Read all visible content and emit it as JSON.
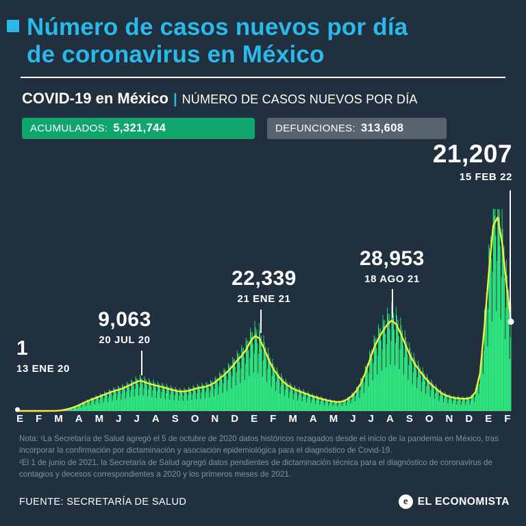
{
  "header": {
    "title_line1": "Número de casos nuevos por día",
    "title_line2": "de coronavirus en México",
    "subtitle_bold": "COVID-19 en México",
    "subtitle_separator": "|",
    "subtitle_rest": "NÚMERO DE CASOS NUEVOS POR DÍA"
  },
  "badges": {
    "accumulated_label": "ACUMULADOS:",
    "accumulated_value": "5,321,744",
    "deaths_label": "DEFUNCIONES:",
    "deaths_value": "313,608"
  },
  "colors": {
    "background": "#21303e",
    "accent_cyan": "#29b9ea",
    "chart_green": "#2ee27d",
    "line_yellow": "#f6ee3c",
    "badge_green": "#10a56c",
    "badge_gray": "#57636d",
    "note_gray": "#7e93a8"
  },
  "chart_data": {
    "type": "area",
    "title": "COVID-19 en México | Número de casos nuevos por día",
    "ylim": [
      0,
      48000
    ],
    "grid": false,
    "x_axis_months": [
      "E",
      "F",
      "M",
      "A",
      "M",
      "J",
      "J",
      "A",
      "S",
      "O",
      "N",
      "D",
      "E",
      "F",
      "M",
      "A",
      "M",
      "J",
      "J",
      "A",
      "S",
      "O",
      "N",
      "D",
      "E",
      "F"
    ],
    "weekly_avg": [
      0,
      0,
      1,
      2,
      3,
      4,
      6,
      9,
      15,
      40,
      120,
      300,
      550,
      900,
      1300,
      1800,
      2300,
      2700,
      3100,
      3500,
      3900,
      4300,
      4700,
      5000,
      5300,
      5800,
      6300,
      6800,
      7200,
      6900,
      6500,
      6200,
      5900,
      5700,
      5400,
      5100,
      4800,
      4600,
      4600,
      4800,
      5100,
      5400,
      5600,
      5800,
      6200,
      6800,
      7700,
      8500,
      9500,
      10700,
      12000,
      13100,
      14500,
      16500,
      17800,
      17300,
      15000,
      12500,
      10300,
      8700,
      7400,
      6400,
      5700,
      5100,
      4700,
      4300,
      3900,
      3500,
      3200,
      2900,
      2600,
      2400,
      2200,
      2100,
      2300,
      2800,
      3600,
      4800,
      6500,
      9000,
      12000,
      15000,
      17200,
      19000,
      20500,
      21500,
      20600,
      18500,
      16000,
      13600,
      11500,
      10000,
      8600,
      7300,
      6200,
      5300,
      4400,
      3800,
      3400,
      3100,
      3000,
      2900,
      2900,
      3200,
      4500,
      9000,
      20000,
      33000,
      44000,
      46000,
      40000,
      30000,
      21207
    ],
    "daily_pattern": [
      1.2,
      1.12,
      1.04,
      1.1,
      0.92,
      0.52,
      0.78
    ],
    "annotations": [
      {
        "value": "1",
        "date": "13 ENE 20"
      },
      {
        "value": "9,063",
        "date": "20 JUL 20"
      },
      {
        "value": "22,339",
        "date": "21 ENE 21"
      },
      {
        "value": "28,953",
        "date": "18 AGO 21"
      },
      {
        "value": "21,207",
        "date": "15 FEB 22"
      }
    ]
  },
  "note": {
    "text1": "Nota: ¹La Secretaría de Salud agregó el 5 de octubre de 2020 datos históricos rezagados desde el inicio de la pandemia en México, tras incorporar la confirmación por dictaminación y asociación epidemiológica para el diagnóstico de Covid-19.",
    "text2": "²El 1 de junio de 2021, la Secretaría de Salud agregó datos pendientes de dictaminación técnica para el diagnóstico de coronavirus de contagios y decesos correspondientes a 2020 y los primeros meses de 2021."
  },
  "footer": {
    "source": "FUENTE: SECRETARÍA DE SALUD",
    "brand": "EL ECONOMISTA"
  }
}
